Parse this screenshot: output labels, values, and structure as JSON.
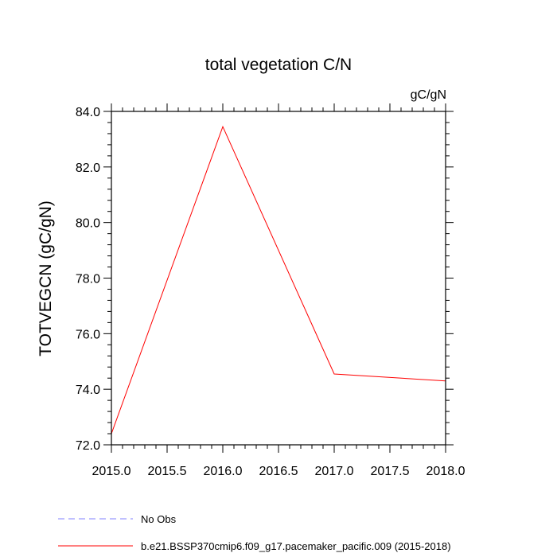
{
  "chart_data": {
    "type": "line",
    "title": "total vegetation C/N",
    "units": "gC/gN",
    "ylabel": "TOTVEGCN  (gC/gN)",
    "xlabel": "",
    "xlim": [
      2015.0,
      2018.0
    ],
    "ylim": [
      72.0,
      84.0
    ],
    "xticks": [
      "2015.0",
      "2015.5",
      "2016.0",
      "2016.5",
      "2017.0",
      "2017.5",
      "2018.0"
    ],
    "yticks": [
      "72.0",
      "74.0",
      "76.0",
      "78.0",
      "80.0",
      "82.0",
      "84.0"
    ],
    "grid": false,
    "legend_position": "bottom",
    "series": [
      {
        "name": "No Obs",
        "color": "#8080ff",
        "style": "dashed",
        "x": [],
        "y": []
      },
      {
        "name": "b.e21.BSSP370cmip6.f09_g17.pacemaker_pacific.009 (2015-2018)",
        "color": "#ff0000",
        "style": "solid",
        "x": [
          2015.0,
          2016.0,
          2017.0,
          2018.0
        ],
        "y": [
          72.4,
          83.45,
          74.55,
          74.3
        ]
      }
    ]
  }
}
